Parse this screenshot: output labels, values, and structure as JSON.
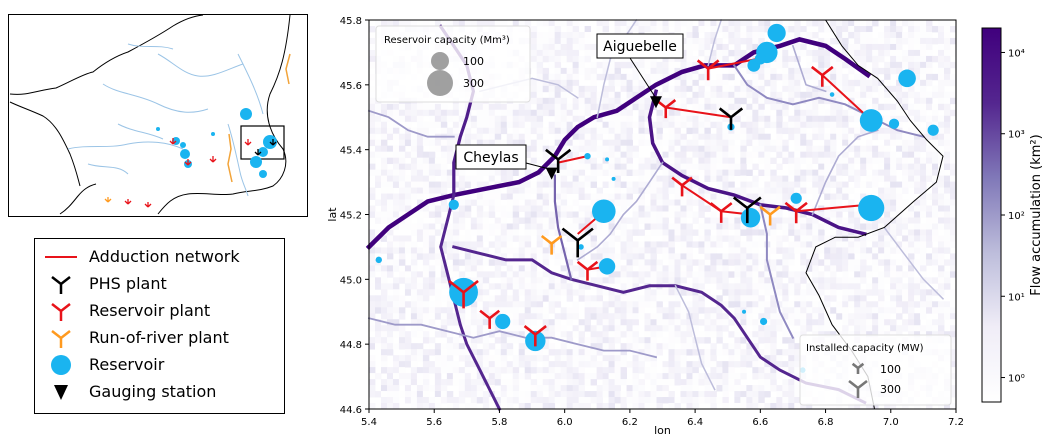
{
  "inset_map": {
    "country": "France"
  },
  "legend": {
    "items": [
      {
        "label": "Adduction network",
        "symbol": "red-line",
        "color": "#e8131a"
      },
      {
        "label": "PHS plant",
        "symbol": "y-marker",
        "color": "#000000"
      },
      {
        "label": "Reservoir plant",
        "symbol": "y-marker",
        "color": "#e8131a"
      },
      {
        "label": "Run-of-river plant",
        "symbol": "y-marker",
        "color": "#ff9a1f"
      },
      {
        "label": "Reservoir",
        "symbol": "circle",
        "color": "#1ab4f0"
      },
      {
        "label": "Gauging station",
        "symbol": "triangle-down",
        "color": "#000000"
      }
    ]
  },
  "chart_data": {
    "type": "heatmap",
    "title": "",
    "xlabel": "lon",
    "ylabel": "lat",
    "xlim": [
      5.4,
      7.2
    ],
    "ylim": [
      44.6,
      45.8
    ],
    "x_ticks": [
      "5.4",
      "5.6",
      "5.8",
      "6.0",
      "6.2",
      "6.4",
      "6.6",
      "6.8",
      "7.0",
      "7.2"
    ],
    "y_ticks": [
      "44.6",
      "44.8",
      "45.0",
      "45.2",
      "45.4",
      "45.6",
      "45.8"
    ],
    "colorbar": {
      "label": "Flow accumulation (km²)",
      "scale": "log",
      "ticks": [
        "10⁰",
        "10¹",
        "10²",
        "10³",
        "10⁴"
      ],
      "range": [
        0.5,
        20000
      ]
    },
    "annotations": [
      {
        "text": "Aiguebelle",
        "lon": 6.28,
        "lat": 45.54
      },
      {
        "text": "Cheylas",
        "lon": 5.96,
        "lat": 45.32
      }
    ],
    "reservoir_size_legend": {
      "title": "Reservoir capacity (Mm³)",
      "values": [
        "100",
        "300"
      ]
    },
    "capacity_size_legend": {
      "title": "Installed capacity (MW)",
      "values": [
        "100",
        "300"
      ]
    },
    "reservoirs": [
      {
        "lon": 6.65,
        "lat": 45.76,
        "cap": 160
      },
      {
        "lon": 6.62,
        "lat": 45.7,
        "cap": 220
      },
      {
        "lon": 6.58,
        "lat": 45.66,
        "cap": 80
      },
      {
        "lon": 6.6,
        "lat": 45.68,
        "cap": 60
      },
      {
        "lon": 7.05,
        "lat": 45.62,
        "cap": 150
      },
      {
        "lon": 6.94,
        "lat": 45.49,
        "cap": 250
      },
      {
        "lon": 7.01,
        "lat": 45.48,
        "cap": 50
      },
      {
        "lon": 7.13,
        "lat": 45.46,
        "cap": 60
      },
      {
        "lon": 6.82,
        "lat": 45.57,
        "cap": 10
      },
      {
        "lon": 6.51,
        "lat": 45.47,
        "cap": 25
      },
      {
        "lon": 6.94,
        "lat": 45.22,
        "cap": 330
      },
      {
        "lon": 6.71,
        "lat": 45.25,
        "cap": 60
      },
      {
        "lon": 6.57,
        "lat": 45.19,
        "cap": 180
      },
      {
        "lon": 6.12,
        "lat": 45.21,
        "cap": 270
      },
      {
        "lon": 6.07,
        "lat": 45.38,
        "cap": 20
      },
      {
        "lon": 6.13,
        "lat": 45.04,
        "cap": 130
      },
      {
        "lon": 6.05,
        "lat": 45.1,
        "cap": 15
      },
      {
        "lon": 5.43,
        "lat": 45.06,
        "cap": 20
      },
      {
        "lon": 5.66,
        "lat": 45.23,
        "cap": 50
      },
      {
        "lon": 5.69,
        "lat": 44.96,
        "cap": 400
      },
      {
        "lon": 5.81,
        "lat": 44.87,
        "cap": 110
      },
      {
        "lon": 5.91,
        "lat": 44.81,
        "cap": 200
      },
      {
        "lon": 6.13,
        "lat": 45.37,
        "cap": 8
      },
      {
        "lon": 6.15,
        "lat": 45.31,
        "cap": 5
      },
      {
        "lon": 6.61,
        "lat": 44.87,
        "cap": 25
      },
      {
        "lon": 6.73,
        "lat": 44.72,
        "cap": 15
      },
      {
        "lon": 6.55,
        "lat": 44.9,
        "cap": 5
      }
    ],
    "adduction_lines": [
      [
        [
          6.44,
          45.65
        ],
        [
          6.64,
          45.69
        ]
      ],
      [
        [
          6.79,
          45.63
        ],
        [
          6.93,
          45.5
        ]
      ],
      [
        [
          6.31,
          45.53
        ],
        [
          6.51,
          45.5
        ]
      ],
      [
        [
          5.98,
          45.36
        ],
        [
          6.07,
          45.38
        ]
      ],
      [
        [
          6.36,
          45.29
        ],
        [
          6.48,
          45.21
        ]
      ],
      [
        [
          6.48,
          45.21
        ],
        [
          6.57,
          45.2
        ]
      ],
      [
        [
          6.71,
          45.21
        ],
        [
          6.93,
          45.23
        ]
      ],
      [
        [
          6.07,
          45.03
        ],
        [
          6.13,
          45.04
        ]
      ],
      [
        [
          6.04,
          45.14
        ],
        [
          6.11,
          45.2
        ]
      ]
    ],
    "plants": [
      {
        "lon": 6.44,
        "lat": 45.65,
        "kind": "reservoir",
        "mw": 120
      },
      {
        "lon": 6.79,
        "lat": 45.63,
        "kind": "reservoir",
        "mw": 120
      },
      {
        "lon": 6.31,
        "lat": 45.53,
        "kind": "reservoir",
        "mw": 90
      },
      {
        "lon": 6.51,
        "lat": 45.5,
        "kind": "phs",
        "mw": 150
      },
      {
        "lon": 5.98,
        "lat": 45.37,
        "kind": "phs",
        "mw": 190
      },
      {
        "lon": 6.36,
        "lat": 45.29,
        "kind": "reservoir",
        "mw": 100
      },
      {
        "lon": 6.48,
        "lat": 45.21,
        "kind": "reservoir",
        "mw": 120
      },
      {
        "lon": 6.56,
        "lat": 45.22,
        "kind": "phs",
        "mw": 250
      },
      {
        "lon": 6.63,
        "lat": 45.2,
        "kind": "runofriver",
        "mw": 100
      },
      {
        "lon": 6.71,
        "lat": 45.21,
        "kind": "reservoir",
        "mw": 130
      },
      {
        "lon": 6.04,
        "lat": 45.12,
        "kind": "phs",
        "mw": 340
      },
      {
        "lon": 5.96,
        "lat": 45.11,
        "kind": "runofriver",
        "mw": 100
      },
      {
        "lon": 6.07,
        "lat": 45.03,
        "kind": "reservoir",
        "mw": 100
      },
      {
        "lon": 5.69,
        "lat": 44.96,
        "kind": "reservoir",
        "mw": 300
      },
      {
        "lon": 5.77,
        "lat": 44.88,
        "kind": "reservoir",
        "mw": 90
      },
      {
        "lon": 5.91,
        "lat": 44.83,
        "kind": "reservoir",
        "mw": 130
      }
    ],
    "gauging_stations": [
      {
        "lon": 6.28,
        "lat": 45.54
      },
      {
        "lon": 5.96,
        "lat": 45.32
      }
    ],
    "border": [
      [
        6.8,
        45.8
      ],
      [
        6.85,
        45.72
      ],
      [
        6.9,
        45.66
      ],
      [
        6.96,
        45.62
      ],
      [
        7.02,
        45.55
      ],
      [
        7.06,
        45.49
      ],
      [
        7.11,
        45.43
      ],
      [
        7.16,
        45.38
      ],
      [
        7.14,
        45.3
      ],
      [
        7.07,
        45.24
      ],
      [
        6.98,
        45.16
      ],
      [
        6.9,
        45.13
      ],
      [
        6.83,
        45.13
      ],
      [
        6.77,
        45.1
      ],
      [
        6.74,
        45.02
      ],
      [
        6.78,
        44.95
      ],
      [
        6.82,
        44.86
      ],
      [
        6.88,
        44.78
      ],
      [
        6.93,
        44.7
      ],
      [
        6.95,
        44.6
      ]
    ]
  }
}
